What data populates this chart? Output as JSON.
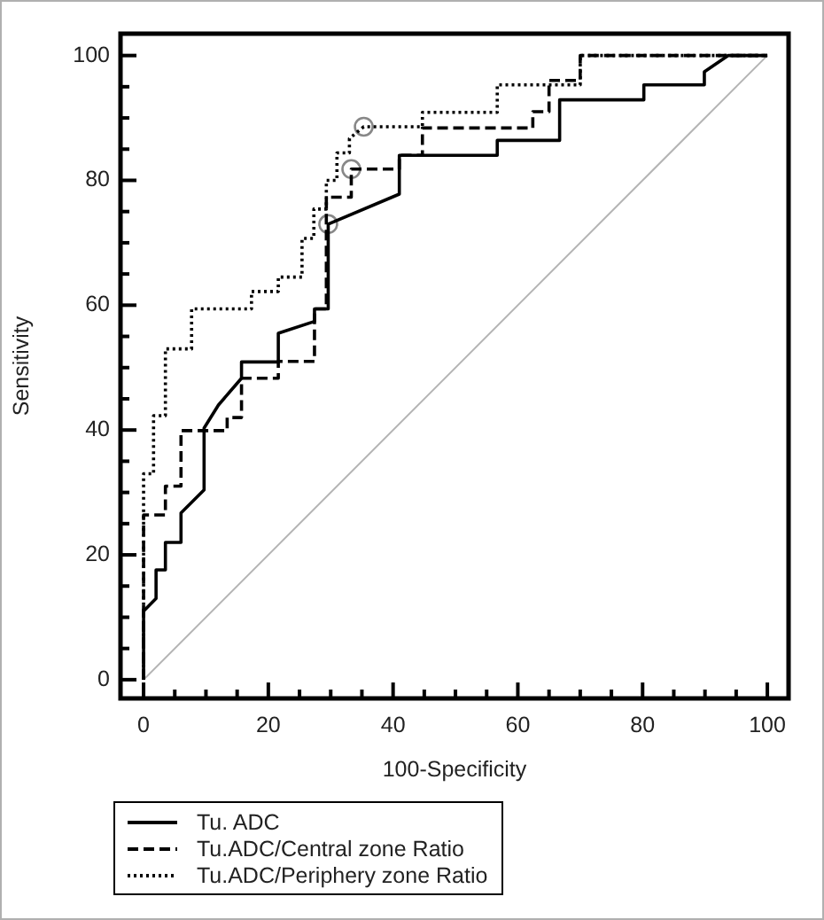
{
  "chart_data": {
    "type": "line",
    "xlabel": "100-Specificity",
    "ylabel": "Sensitivity",
    "xlim": [
      -3.7,
      103.4
    ],
    "ylim": [
      -3,
      103.5
    ],
    "xticks": [
      0,
      {
        "value": 5,
        "label": null
      },
      {
        "value": 10,
        "label": null
      },
      {
        "value": 15,
        "label": null
      },
      20,
      {
        "value": 25,
        "label": null
      },
      {
        "value": 30,
        "label": null
      },
      {
        "value": 35,
        "label": null
      },
      40,
      {
        "value": 45,
        "label": null
      },
      {
        "value": 50,
        "label": null
      },
      {
        "value": 55,
        "label": null
      },
      60,
      {
        "value": 65,
        "label": null
      },
      {
        "value": 70,
        "label": null
      },
      {
        "value": 75,
        "label": null
      },
      80,
      {
        "value": 85,
        "label": null
      },
      {
        "value": 90,
        "label": null
      },
      {
        "value": 95,
        "label": null
      },
      100
    ],
    "yticks": [
      0,
      {
        "value": 5,
        "label": null
      },
      {
        "value": 10,
        "label": null
      },
      {
        "value": 15,
        "label": null
      },
      20,
      {
        "value": 25,
        "label": null
      },
      {
        "value": 30,
        "label": null
      },
      {
        "value": 35,
        "label": null
      },
      40,
      {
        "value": 45,
        "label": null
      },
      {
        "value": 50,
        "label": null
      },
      {
        "value": 55,
        "label": null
      },
      60,
      {
        "value": 65,
        "label": null
      },
      {
        "value": 70,
        "label": null
      },
      {
        "value": 75,
        "label": null
      },
      80,
      {
        "value": 85,
        "label": null
      },
      {
        "value": 90,
        "label": null
      },
      {
        "value": 95,
        "label": null
      },
      100
    ],
    "grid": false,
    "legend": "bottom",
    "marker": "none",
    "series": [
      {
        "name": "Tu. ADC",
        "color": "#000000",
        "line_style": "solid",
        "x": [
          0,
          0,
          2,
          2,
          3.5,
          3.5,
          6,
          6,
          9.7,
          9.7,
          12,
          15.7,
          15.7,
          21.6,
          21.6,
          27.4,
          27.4,
          29.6,
          29.6,
          41,
          41,
          56.7,
          56.7,
          66.7,
          66.7,
          80.2,
          80.2,
          89.9,
          89.9,
          93.7,
          100
        ],
        "values": [
          0,
          11,
          13,
          17.6,
          17.6,
          22,
          22,
          26.7,
          30.4,
          40.3,
          44,
          48.3,
          50.9,
          50.9,
          55.5,
          57.4,
          59.4,
          59.4,
          73,
          77.8,
          84,
          84,
          86.4,
          86.4,
          92.9,
          92.9,
          95.3,
          95.3,
          97.4,
          100,
          100
        ]
      },
      {
        "name": "Tu.ADC/Central zone Ratio",
        "color": "#000000",
        "line_style": "dashed",
        "x": [
          0,
          0,
          3.5,
          3.5,
          6,
          6,
          13.4,
          13.4,
          15.7,
          15.7,
          21.6,
          21.6,
          27.4,
          27.4,
          29.3,
          29.3,
          33.3,
          33.3,
          41,
          41,
          44.7,
          44.7,
          62.4,
          62.4,
          65,
          65,
          70,
          70,
          72.6,
          100
        ],
        "values": [
          0,
          26.4,
          26.4,
          31,
          31,
          39.9,
          39.9,
          42,
          42,
          48.3,
          48.3,
          51,
          51,
          59.4,
          59.4,
          77.3,
          77.3,
          81.8,
          81.8,
          84,
          84,
          88.4,
          88.4,
          91,
          91,
          96,
          96,
          100,
          100,
          100
        ]
      },
      {
        "name": "Tu.ADC/Periphery zone Ratio",
        "color": "#000000",
        "line_style": "dotted",
        "x": [
          0,
          0,
          1.6,
          1.6,
          3.5,
          3.5,
          7.7,
          7.7,
          17.3,
          17.3,
          21.6,
          21.6,
          25.4,
          25.4,
          27.3,
          27.3,
          29.3,
          29.3,
          31,
          31,
          33,
          33,
          35.3,
          44.7,
          44.7,
          56.7,
          56.7,
          70,
          70,
          100
        ],
        "values": [
          0,
          33,
          33,
          42.3,
          42.3,
          53,
          53,
          59.4,
          59.4,
          62.2,
          62.2,
          64.5,
          64.5,
          70.7,
          70.7,
          75.4,
          75.4,
          80,
          80,
          84.4,
          84.4,
          86.7,
          88.6,
          88.6,
          90.9,
          90.9,
          95.3,
          95.3,
          100,
          100
        ]
      },
      {
        "color": "#b4b4b4",
        "line_style": "solid",
        "x": [
          0,
          100
        ],
        "values": [
          0,
          100
        ]
      },
      {
        "type": "scatter",
        "color": "#888888",
        "marker": "circle",
        "x": [
          29.6,
          33.3,
          35.3
        ],
        "values": [
          73,
          81.8,
          88.6
        ]
      }
    ]
  }
}
